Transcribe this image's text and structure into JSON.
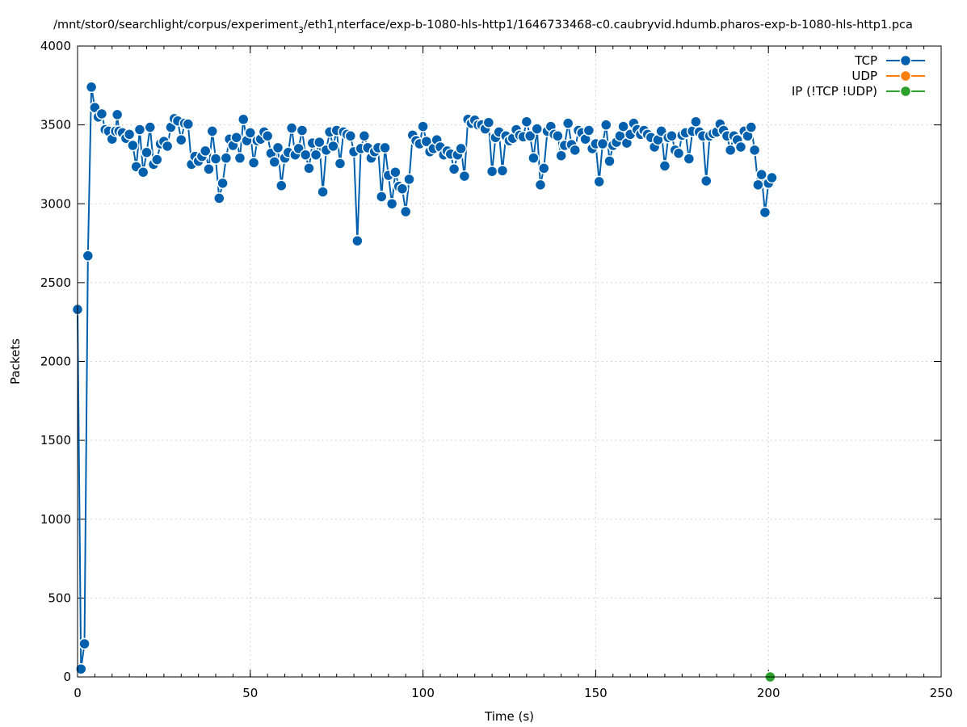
{
  "chart_data": {
    "type": "line",
    "title_parts": [
      "/mnt/stor0/searchlight/corpus/experiment",
      "3",
      "/eth1",
      "i",
      "nterface/exp-b-1080-hls-http1/1646733468-c0.caubryvid.hdumb.pharos-exp-b-1080-hls-http1.pca"
    ],
    "xlabel": "Time (s)",
    "ylabel": "Packets",
    "xlim": [
      0,
      250
    ],
    "ylim": [
      0,
      4000
    ],
    "xticks": [
      0,
      50,
      100,
      150,
      200,
      250
    ],
    "yticks": [
      0,
      500,
      1000,
      1500,
      2000,
      2500,
      3000,
      3500,
      4000
    ],
    "grid": true,
    "legend_position": "top-right",
    "series": [
      {
        "name": "TCP",
        "color": "#0060ad",
        "points": [
          [
            0,
            2330
          ],
          [
            1,
            50
          ],
          [
            2,
            210
          ],
          [
            3,
            2670
          ],
          [
            4,
            3740
          ],
          [
            5,
            3610
          ],
          [
            6,
            3550
          ],
          [
            7,
            3570
          ],
          [
            8,
            3470
          ],
          [
            9,
            3460
          ],
          [
            10,
            3410
          ],
          [
            11,
            3460
          ],
          [
            11.5,
            3565
          ],
          [
            12,
            3460
          ],
          [
            13,
            3450
          ],
          [
            14,
            3415
          ],
          [
            15,
            3440
          ],
          [
            16,
            3370
          ],
          [
            17,
            3235
          ],
          [
            18,
            3470
          ],
          [
            19,
            3200
          ],
          [
            20,
            3325
          ],
          [
            21,
            3485
          ],
          [
            22,
            3250
          ],
          [
            23,
            3280
          ],
          [
            24,
            3380
          ],
          [
            25,
            3395
          ],
          [
            26,
            3365
          ],
          [
            27,
            3485
          ],
          [
            28,
            3540
          ],
          [
            29,
            3525
          ],
          [
            30,
            3405
          ],
          [
            31,
            3510
          ],
          [
            32,
            3505
          ],
          [
            33,
            3250
          ],
          [
            34,
            3300
          ],
          [
            35,
            3270
          ],
          [
            36,
            3300
          ],
          [
            37,
            3335
          ],
          [
            38,
            3220
          ],
          [
            39,
            3460
          ],
          [
            40,
            3285
          ],
          [
            41,
            3035
          ],
          [
            42,
            3130
          ],
          [
            43,
            3290
          ],
          [
            44,
            3410
          ],
          [
            45,
            3370
          ],
          [
            46,
            3420
          ],
          [
            47,
            3290
          ],
          [
            48,
            3535
          ],
          [
            49,
            3400
          ],
          [
            50,
            3450
          ],
          [
            51,
            3260
          ],
          [
            52,
            3400
          ],
          [
            53,
            3410
          ],
          [
            54,
            3455
          ],
          [
            55,
            3430
          ],
          [
            56,
            3320
          ],
          [
            57,
            3265
          ],
          [
            58,
            3355
          ],
          [
            59,
            3115
          ],
          [
            60,
            3290
          ],
          [
            61,
            3325
          ],
          [
            62,
            3480
          ],
          [
            63,
            3310
          ],
          [
            64,
            3350
          ],
          [
            65,
            3465
          ],
          [
            66,
            3310
          ],
          [
            67,
            3225
          ],
          [
            68,
            3385
          ],
          [
            69,
            3310
          ],
          [
            70,
            3390
          ],
          [
            71,
            3075
          ],
          [
            72,
            3340
          ],
          [
            73,
            3455
          ],
          [
            74,
            3365
          ],
          [
            75,
            3465
          ],
          [
            76,
            3255
          ],
          [
            77,
            3455
          ],
          [
            78,
            3440
          ],
          [
            79,
            3430
          ],
          [
            80,
            3330
          ],
          [
            81,
            2765
          ],
          [
            82,
            3350
          ],
          [
            83,
            3430
          ],
          [
            84,
            3355
          ],
          [
            85,
            3290
          ],
          [
            86,
            3330
          ],
          [
            87,
            3355
          ],
          [
            88,
            3045
          ],
          [
            89,
            3355
          ],
          [
            90,
            3180
          ],
          [
            91,
            3000
          ],
          [
            92,
            3200
          ],
          [
            93,
            3110
          ],
          [
            94,
            3095
          ],
          [
            95,
            2950
          ],
          [
            96,
            3155
          ],
          [
            97,
            3435
          ],
          [
            98,
            3400
          ],
          [
            99,
            3380
          ],
          [
            100,
            3490
          ],
          [
            101,
            3395
          ],
          [
            102,
            3330
          ],
          [
            103,
            3350
          ],
          [
            104,
            3405
          ],
          [
            105,
            3360
          ],
          [
            106,
            3310
          ],
          [
            107,
            3335
          ],
          [
            108,
            3315
          ],
          [
            109,
            3220
          ],
          [
            110,
            3310
          ],
          [
            111,
            3350
          ],
          [
            112,
            3175
          ],
          [
            113,
            3535
          ],
          [
            114,
            3510
          ],
          [
            115,
            3530
          ],
          [
            116,
            3500
          ],
          [
            117,
            3500
          ],
          [
            118,
            3475
          ],
          [
            119,
            3515
          ],
          [
            120,
            3205
          ],
          [
            121,
            3420
          ],
          [
            122,
            3455
          ],
          [
            123,
            3210
          ],
          [
            124,
            3430
          ],
          [
            125,
            3400
          ],
          [
            126,
            3415
          ],
          [
            127,
            3470
          ],
          [
            128,
            3435
          ],
          [
            129,
            3425
          ],
          [
            130,
            3520
          ],
          [
            131,
            3430
          ],
          [
            132,
            3290
          ],
          [
            133,
            3475
          ],
          [
            134,
            3120
          ],
          [
            135,
            3225
          ],
          [
            136,
            3460
          ],
          [
            137,
            3490
          ],
          [
            138,
            3440
          ],
          [
            139,
            3430
          ],
          [
            140,
            3305
          ],
          [
            141,
            3370
          ],
          [
            142,
            3510
          ],
          [
            143,
            3375
          ],
          [
            144,
            3340
          ],
          [
            145,
            3465
          ],
          [
            146,
            3450
          ],
          [
            147,
            3410
          ],
          [
            148,
            3465
          ],
          [
            149,
            3350
          ],
          [
            150,
            3380
          ],
          [
            151,
            3140
          ],
          [
            152,
            3380
          ],
          [
            153,
            3500
          ],
          [
            154,
            3270
          ],
          [
            155,
            3370
          ],
          [
            156,
            3390
          ],
          [
            157,
            3430
          ],
          [
            158,
            3490
          ],
          [
            159,
            3385
          ],
          [
            160,
            3440
          ],
          [
            161,
            3510
          ],
          [
            162,
            3470
          ],
          [
            163,
            3440
          ],
          [
            164,
            3465
          ],
          [
            165,
            3440
          ],
          [
            166,
            3420
          ],
          [
            167,
            3360
          ],
          [
            168,
            3405
          ],
          [
            169,
            3460
          ],
          [
            170,
            3240
          ],
          [
            171,
            3420
          ],
          [
            172,
            3430
          ],
          [
            173,
            3340
          ],
          [
            174,
            3320
          ],
          [
            175,
            3435
          ],
          [
            176,
            3450
          ],
          [
            177,
            3285
          ],
          [
            178,
            3460
          ],
          [
            179,
            3520
          ],
          [
            180,
            3455
          ],
          [
            181,
            3430
          ],
          [
            182,
            3145
          ],
          [
            183,
            3430
          ],
          [
            184,
            3445
          ],
          [
            185,
            3455
          ],
          [
            186,
            3505
          ],
          [
            187,
            3465
          ],
          [
            188,
            3430
          ],
          [
            189,
            3340
          ],
          [
            190,
            3430
          ],
          [
            191,
            3405
          ],
          [
            192,
            3360
          ],
          [
            193,
            3460
          ],
          [
            194,
            3430
          ],
          [
            195,
            3485
          ],
          [
            196,
            3340
          ],
          [
            197,
            3120
          ],
          [
            198,
            3185
          ],
          [
            199,
            2945
          ],
          [
            200,
            3130
          ],
          [
            201,
            3165
          ]
        ]
      },
      {
        "name": "UDP",
        "color": "#ff7f0e",
        "points": []
      },
      {
        "name": "IP (!TCP  !UDP)",
        "color": "#2ca02c",
        "points": [
          [
            200.5,
            0
          ]
        ]
      }
    ]
  }
}
